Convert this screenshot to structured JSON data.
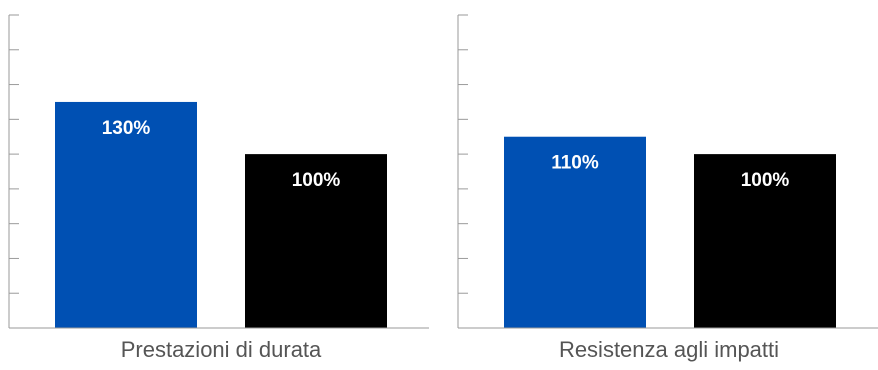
{
  "chart_data": [
    {
      "type": "bar",
      "categories": [
        "",
        ""
      ],
      "values": [
        130,
        100
      ],
      "value_labels": [
        "130%",
        "100%"
      ],
      "title": "",
      "xlabel": "Prestazioni di durata",
      "ylabel": "",
      "ylim": [
        0,
        180
      ],
      "grid": false,
      "legend": "none",
      "colors": [
        "#0050b3",
        "#000000"
      ],
      "label_color": "#ffffff"
    },
    {
      "type": "bar",
      "categories": [
        "",
        ""
      ],
      "values": [
        110,
        100
      ],
      "value_labels": [
        "110%",
        "100%"
      ],
      "title": "",
      "xlabel": "Resistenza agli impatti",
      "ylabel": "",
      "ylim": [
        0,
        180
      ],
      "grid": false,
      "legend": "none",
      "colors": [
        "#0050b3",
        "#000000"
      ],
      "label_color": "#ffffff"
    }
  ],
  "colors": {
    "axis": "#9a9a9a",
    "caption": "#555555",
    "background": "#ffffff"
  }
}
